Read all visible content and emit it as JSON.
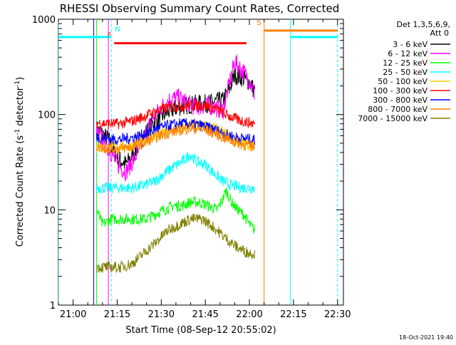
{
  "chart_data": {
    "type": "line",
    "title": "RHESSI Observing Summary Count Rates, Corrected",
    "xlabel": "Start Time (08-Sep-12 20:55:02)",
    "ylabel": "Corrected Count Rate (s",
    "ylabel_sup1": "-1",
    "ylabel_mid": " detector",
    "ylabel_sup2": "-1",
    "ylabel_end": ")",
    "y_scale": "log",
    "ylim": [
      1,
      1000
    ],
    "x_range": [
      "20:55",
      "22:32"
    ],
    "x_ticks": [
      "21:00",
      "21:15",
      "21:30",
      "21:45",
      "22:00",
      "22:15",
      "22:30"
    ],
    "y_ticks": [
      "1",
      "10",
      "100",
      "1000"
    ],
    "grid": false,
    "legend_position": "top-right",
    "legend_header": [
      "Det 1,3,5,6,9,",
      "Att 0"
    ],
    "footer_date": "18-Oct-2021 19:40",
    "series": [
      {
        "name": "3 - 6 keV",
        "color": "#000000",
        "points": [
          [
            "21:08",
            70
          ],
          [
            "21:12",
            55
          ],
          [
            "21:15",
            35
          ],
          [
            "21:18",
            30
          ],
          [
            "21:21",
            40
          ],
          [
            "21:24",
            60
          ],
          [
            "21:27",
            80
          ],
          [
            "21:30",
            95
          ],
          [
            "21:33",
            110
          ],
          [
            "21:36",
            120
          ],
          [
            "21:39",
            125
          ],
          [
            "21:42",
            130
          ],
          [
            "21:45",
            130
          ],
          [
            "21:48",
            135
          ],
          [
            "21:51",
            140
          ],
          [
            "21:53",
            180
          ],
          [
            "21:55",
            260
          ],
          [
            "21:58",
            240
          ],
          [
            "22:00",
            220
          ],
          [
            "22:02",
            170
          ]
        ]
      },
      {
        "name": "6 - 12 keV",
        "color": "#ff00ff",
        "points": [
          [
            "21:08",
            65
          ],
          [
            "21:12",
            45
          ],
          [
            "21:15",
            30
          ],
          [
            "21:18",
            25
          ],
          [
            "21:21",
            35
          ],
          [
            "21:24",
            55
          ],
          [
            "21:27",
            90
          ],
          [
            "21:30",
            120
          ],
          [
            "21:33",
            145
          ],
          [
            "21:36",
            150
          ],
          [
            "21:39",
            130
          ],
          [
            "21:42",
            120
          ],
          [
            "21:45",
            125
          ],
          [
            "21:48",
            120
          ],
          [
            "21:51",
            110
          ],
          [
            "21:53",
            200
          ],
          [
            "21:55",
            360
          ],
          [
            "21:58",
            280
          ],
          [
            "22:00",
            230
          ],
          [
            "22:02",
            160
          ]
        ]
      },
      {
        "name": "12 - 25 keV",
        "color": "#00ff00",
        "points": [
          [
            "21:08",
            10
          ],
          [
            "21:10",
            7
          ],
          [
            "21:13",
            8
          ],
          [
            "21:16",
            8
          ],
          [
            "21:19",
            8
          ],
          [
            "21:22",
            8
          ],
          [
            "21:25",
            8
          ],
          [
            "21:28",
            9
          ],
          [
            "21:31",
            10
          ],
          [
            "21:34",
            11
          ],
          [
            "21:37",
            11
          ],
          [
            "21:40",
            12
          ],
          [
            "21:43",
            12
          ],
          [
            "21:46",
            11
          ],
          [
            "21:49",
            10
          ],
          [
            "21:51",
            13
          ],
          [
            "21:52",
            16
          ],
          [
            "21:54",
            12
          ],
          [
            "21:56",
            10
          ],
          [
            "21:58",
            9
          ],
          [
            "22:00",
            7
          ],
          [
            "22:02",
            6
          ]
        ]
      },
      {
        "name": "25 - 50 keV",
        "color": "#00ffff",
        "points": [
          [
            "21:08",
            17
          ],
          [
            "21:12",
            17
          ],
          [
            "21:16",
            17
          ],
          [
            "21:20",
            17
          ],
          [
            "21:24",
            18
          ],
          [
            "21:28",
            20
          ],
          [
            "21:31",
            24
          ],
          [
            "21:34",
            28
          ],
          [
            "21:37",
            32
          ],
          [
            "21:40",
            38
          ],
          [
            "21:42",
            32
          ],
          [
            "21:45",
            30
          ],
          [
            "21:48",
            24
          ],
          [
            "21:51",
            20
          ],
          [
            "21:54",
            18
          ],
          [
            "21:58",
            17
          ],
          [
            "22:02",
            17
          ]
        ]
      },
      {
        "name": "50 - 100 keV",
        "color": "#ffcc00",
        "points": [
          [
            "21:08",
            45
          ],
          [
            "21:12",
            45
          ],
          [
            "21:16",
            46
          ],
          [
            "21:20",
            47
          ],
          [
            "21:24",
            52
          ],
          [
            "21:28",
            60
          ],
          [
            "21:32",
            66
          ],
          [
            "21:36",
            70
          ],
          [
            "21:40",
            78
          ],
          [
            "21:44",
            76
          ],
          [
            "21:48",
            72
          ],
          [
            "21:52",
            62
          ],
          [
            "21:56",
            52
          ],
          [
            "22:00",
            48
          ],
          [
            "22:02",
            46
          ]
        ]
      },
      {
        "name": "100 - 300 keV",
        "color": "#ff0000",
        "points": [
          [
            "21:08",
            82
          ],
          [
            "21:12",
            80
          ],
          [
            "21:16",
            80
          ],
          [
            "21:20",
            85
          ],
          [
            "21:24",
            95
          ],
          [
            "21:28",
            108
          ],
          [
            "21:32",
            118
          ],
          [
            "21:36",
            122
          ],
          [
            "21:40",
            125
          ],
          [
            "21:44",
            125
          ],
          [
            "21:48",
            118
          ],
          [
            "21:52",
            100
          ],
          [
            "21:56",
            88
          ],
          [
            "22:00",
            82
          ],
          [
            "22:02",
            80
          ]
        ]
      },
      {
        "name": "300 - 800 keV",
        "color": "#0000ff",
        "points": [
          [
            "21:08",
            58
          ],
          [
            "21:12",
            55
          ],
          [
            "21:16",
            55
          ],
          [
            "21:20",
            57
          ],
          [
            "21:24",
            62
          ],
          [
            "21:28",
            70
          ],
          [
            "21:32",
            76
          ],
          [
            "21:36",
            80
          ],
          [
            "21:40",
            80
          ],
          [
            "21:44",
            76
          ],
          [
            "21:48",
            70
          ],
          [
            "21:52",
            62
          ],
          [
            "21:56",
            57
          ],
          [
            "22:00",
            55
          ],
          [
            "22:02",
            54
          ]
        ]
      },
      {
        "name": "800 - 7000 keV",
        "color": "#ff8000",
        "points": [
          [
            "21:08",
            46
          ],
          [
            "21:12",
            44
          ],
          [
            "21:16",
            44
          ],
          [
            "21:20",
            46
          ],
          [
            "21:24",
            50
          ],
          [
            "21:28",
            58
          ],
          [
            "21:32",
            64
          ],
          [
            "21:36",
            68
          ],
          [
            "21:40",
            72
          ],
          [
            "21:44",
            70
          ],
          [
            "21:48",
            64
          ],
          [
            "21:52",
            56
          ],
          [
            "21:56",
            50
          ],
          [
            "22:00",
            47
          ],
          [
            "22:02",
            46
          ]
        ]
      },
      {
        "name": "7000 - 15000 keV",
        "color": "#808000",
        "points": [
          [
            "21:08",
            2.5
          ],
          [
            "21:12",
            2.5
          ],
          [
            "21:16",
            2.5
          ],
          [
            "21:20",
            2.7
          ],
          [
            "21:24",
            3.5
          ],
          [
            "21:28",
            4.5
          ],
          [
            "21:32",
            6
          ],
          [
            "21:36",
            7
          ],
          [
            "21:40",
            8
          ],
          [
            "21:44",
            8
          ],
          [
            "21:48",
            6.5
          ],
          [
            "21:52",
            5
          ],
          [
            "21:56",
            4
          ],
          [
            "22:00",
            3.5
          ],
          [
            "22:02",
            3.5
          ]
        ]
      }
    ],
    "events": [
      {
        "type": "vline",
        "color": "#00ffff",
        "dashed": false,
        "time": "20:55"
      },
      {
        "type": "vline",
        "color": "#00ffff",
        "dashed": true,
        "time": "21:13"
      },
      {
        "type": "vline",
        "color": "#00ffff",
        "dashed": false,
        "time": "22:14"
      },
      {
        "type": "vline",
        "color": "#00ffff",
        "dashed": true,
        "time": "22:30"
      },
      {
        "type": "vline",
        "color": "#ff8000",
        "dashed": false,
        "time": "22:05"
      },
      {
        "type": "vline",
        "color": "#0000ff",
        "dashed": false,
        "time": "21:07"
      },
      {
        "type": "vline",
        "color": "#ff00ff",
        "dashed": false,
        "time": "21:12"
      },
      {
        "type": "vline",
        "color": "#00ff00",
        "dashed": false,
        "time": "21:08"
      }
    ],
    "bars": [
      {
        "label": "",
        "color": "#00ffff",
        "start": "20:55",
        "end": "21:13",
        "value": 650
      },
      {
        "label": "N",
        "color": "#00ffff",
        "start": "21:13",
        "end": "21:13",
        "value": 650
      },
      {
        "label": "F",
        "color": "#ff0000",
        "start": "21:14",
        "end": "21:59",
        "value": 560
      },
      {
        "label": "S",
        "color": "#ff8000",
        "start": "22:05",
        "end": "22:30",
        "value": 760
      },
      {
        "label": "",
        "color": "#00ffff",
        "start": "22:14",
        "end": "22:30",
        "value": 650
      }
    ]
  }
}
